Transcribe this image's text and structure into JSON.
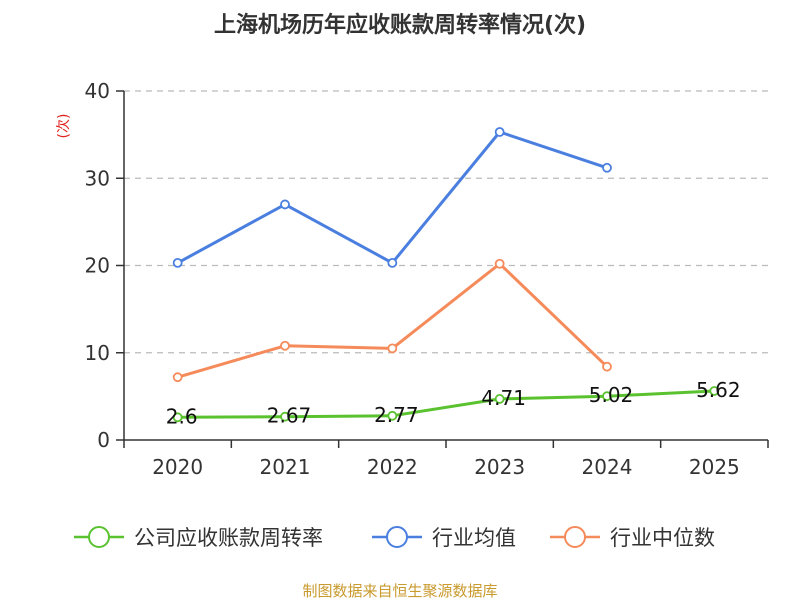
{
  "colors": {
    "company": "#5ac22f",
    "industry_avg": "#4a7fe0",
    "industry_median": "#f58b5a",
    "grid": "#bbbbbb",
    "axis": "#333333",
    "ylabel": "#e0201b",
    "footer": "#c99a2e"
  },
  "footer": "制图数据来自恒生聚源数据库",
  "chart_data": {
    "type": "line",
    "title": "上海机场历年应收账款周转率情况(次)",
    "xlabel": "",
    "ylabel": "(次)",
    "ylim": [
      0,
      40
    ],
    "yticks": [
      0,
      10,
      20,
      30,
      40
    ],
    "categories": [
      "2020",
      "2021",
      "2022",
      "2023",
      "2024",
      "2025"
    ],
    "grid": true,
    "legend_position": "bottom",
    "series": [
      {
        "name": "公司应收账款周转率",
        "key": "company",
        "values": [
          2.6,
          2.67,
          2.77,
          4.71,
          5.02,
          5.62
        ],
        "labels": [
          "2.6",
          "2.67",
          "2.77",
          "4.71",
          "5.02",
          "5.62"
        ],
        "show_labels": true,
        "show_markers": true
      },
      {
        "name": "行业均值",
        "key": "industry_avg",
        "values": [
          20.3,
          27.0,
          20.3,
          35.3,
          31.2,
          null
        ],
        "show_labels": false,
        "show_markers": true
      },
      {
        "name": "行业中位数",
        "key": "industry_median",
        "values": [
          7.2,
          10.8,
          10.5,
          20.2,
          8.4,
          null
        ],
        "show_labels": false,
        "show_markers": true
      }
    ]
  }
}
